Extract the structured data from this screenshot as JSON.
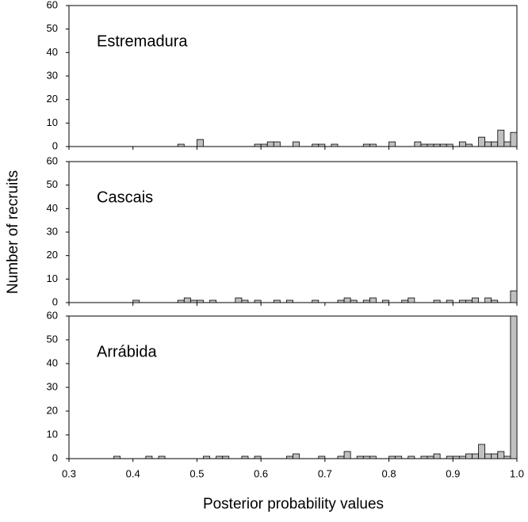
{
  "chart_data": [
    {
      "type": "histogram",
      "title": "Estremadura",
      "color": "#c0c0c0",
      "bins": [
        0.3,
        0.31,
        0.32,
        0.33,
        0.34,
        0.35,
        0.36,
        0.37,
        0.38,
        0.39,
        0.4,
        0.41,
        0.42,
        0.43,
        0.44,
        0.45,
        0.46,
        0.47,
        0.48,
        0.49,
        0.5,
        0.51,
        0.52,
        0.53,
        0.54,
        0.55,
        0.56,
        0.57,
        0.58,
        0.59,
        0.6,
        0.61,
        0.62,
        0.63,
        0.64,
        0.65,
        0.66,
        0.67,
        0.68,
        0.69,
        0.7,
        0.71,
        0.72,
        0.73,
        0.74,
        0.75,
        0.76,
        0.77,
        0.78,
        0.79,
        0.8,
        0.81,
        0.82,
        0.83,
        0.84,
        0.85,
        0.86,
        0.87,
        0.88,
        0.89,
        0.9,
        0.91,
        0.92,
        0.93,
        0.94,
        0.95,
        0.96,
        0.97,
        0.98,
        0.99,
        1.0
      ],
      "values": [
        0,
        0,
        0,
        0,
        0,
        0,
        0,
        0,
        0,
        0,
        0,
        0,
        0,
        0,
        0,
        0,
        0,
        1,
        0,
        0,
        3,
        0,
        0,
        0,
        0,
        0,
        0,
        0,
        0,
        1,
        1,
        2,
        2,
        0,
        0,
        2,
        0,
        0,
        1,
        1,
        0,
        1,
        0,
        0,
        0,
        0,
        1,
        1,
        0,
        0,
        2,
        0,
        0,
        0,
        2,
        1,
        1,
        1,
        1,
        1,
        0,
        2,
        1,
        0,
        4,
        2,
        2,
        7,
        2,
        6
      ],
      "xlim": [
        0.3,
        1
      ],
      "ylim": [
        0,
        60
      ],
      "yticks": [
        0,
        10,
        20,
        30,
        40,
        50,
        60
      ]
    },
    {
      "type": "histogram",
      "title": "Cascais",
      "color": "#c0c0c0",
      "y_label": "Number of recruits",
      "bins": [
        0.3,
        0.31,
        0.32,
        0.33,
        0.34,
        0.35,
        0.36,
        0.37,
        0.38,
        0.39,
        0.4,
        0.41,
        0.42,
        0.43,
        0.44,
        0.45,
        0.46,
        0.47,
        0.48,
        0.49,
        0.5,
        0.51,
        0.52,
        0.53,
        0.54,
        0.55,
        0.56,
        0.57,
        0.58,
        0.59,
        0.6,
        0.61,
        0.62,
        0.63,
        0.64,
        0.65,
        0.66,
        0.67,
        0.68,
        0.69,
        0.7,
        0.71,
        0.72,
        0.73,
        0.74,
        0.75,
        0.76,
        0.77,
        0.78,
        0.79,
        0.8,
        0.81,
        0.82,
        0.83,
        0.84,
        0.85,
        0.86,
        0.87,
        0.88,
        0.89,
        0.9,
        0.91,
        0.92,
        0.93,
        0.94,
        0.95,
        0.96,
        0.97,
        0.98,
        0.99,
        1.0
      ],
      "values": [
        0,
        0,
        0,
        0,
        0,
        0,
        0,
        0,
        0,
        0,
        1,
        0,
        0,
        0,
        0,
        0,
        0,
        1,
        2,
        1,
        1,
        0,
        1,
        0,
        0,
        0,
        2,
        1,
        0,
        1,
        0,
        0,
        1,
        0,
        1,
        0,
        0,
        0,
        1,
        0,
        0,
        0,
        1,
        2,
        1,
        0,
        1,
        2,
        0,
        1,
        0,
        0,
        1,
        2,
        0,
        0,
        0,
        1,
        0,
        1,
        0,
        1,
        1,
        2,
        0,
        2,
        1,
        0,
        0,
        5
      ],
      "xlim": [
        0.3,
        1
      ],
      "ylim": [
        0,
        60
      ],
      "yticks": [
        0,
        10,
        20,
        30,
        40,
        50,
        60
      ]
    },
    {
      "type": "histogram",
      "title": "Arrábida",
      "color": "#c0c0c0",
      "x_label": "Posterior probability values",
      "bins": [
        0.3,
        0.31,
        0.32,
        0.33,
        0.34,
        0.35,
        0.36,
        0.37,
        0.38,
        0.39,
        0.4,
        0.41,
        0.42,
        0.43,
        0.44,
        0.45,
        0.46,
        0.47,
        0.48,
        0.49,
        0.5,
        0.51,
        0.52,
        0.53,
        0.54,
        0.55,
        0.56,
        0.57,
        0.58,
        0.59,
        0.6,
        0.61,
        0.62,
        0.63,
        0.64,
        0.65,
        0.66,
        0.67,
        0.68,
        0.69,
        0.7,
        0.71,
        0.72,
        0.73,
        0.74,
        0.75,
        0.76,
        0.77,
        0.78,
        0.79,
        0.8,
        0.81,
        0.82,
        0.83,
        0.84,
        0.85,
        0.86,
        0.87,
        0.88,
        0.89,
        0.9,
        0.91,
        0.92,
        0.93,
        0.94,
        0.95,
        0.96,
        0.97,
        0.98,
        0.99,
        1.0
      ],
      "values": [
        0,
        0,
        0,
        0,
        0,
        0,
        0,
        1,
        0,
        0,
        0,
        0,
        1,
        0,
        1,
        0,
        0,
        0,
        0,
        0,
        0,
        1,
        0,
        1,
        1,
        0,
        0,
        1,
        0,
        1,
        0,
        0,
        0,
        0,
        1,
        2,
        0,
        0,
        0,
        1,
        0,
        0,
        1,
        3,
        0,
        1,
        1,
        1,
        0,
        0,
        1,
        1,
        0,
        1,
        0,
        1,
        1,
        2,
        0,
        1,
        1,
        1,
        2,
        2,
        6,
        2,
        2,
        3,
        1,
        60
      ],
      "xlim": [
        0.3,
        1
      ],
      "xticks": [
        0.3,
        0.4,
        0.5,
        0.6,
        0.7,
        0.8,
        0.9,
        {
          "value": 1,
          "label": "1.0"
        }
      ],
      "ylim": [
        0,
        60
      ],
      "yticks": [
        0,
        10,
        20,
        30,
        40,
        50,
        60
      ]
    }
  ]
}
